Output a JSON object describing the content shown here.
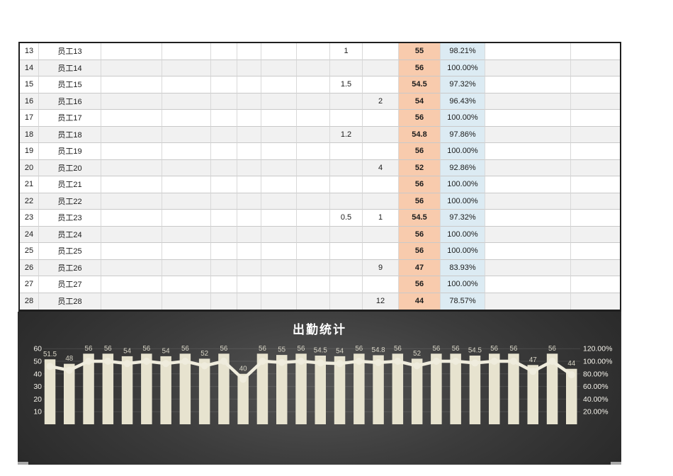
{
  "table": {
    "rows": [
      [
        "13",
        "员工13",
        "",
        "",
        "",
        "",
        "",
        "",
        "1",
        "",
        "55",
        "98.21%",
        "",
        ""
      ],
      [
        "14",
        "员工14",
        "",
        "",
        "",
        "",
        "",
        "",
        "",
        "",
        "56",
        "100.00%",
        "",
        ""
      ],
      [
        "15",
        "员工15",
        "",
        "",
        "",
        "",
        "",
        "",
        "1.5",
        "",
        "54.5",
        "97.32%",
        "",
        ""
      ],
      [
        "16",
        "员工16",
        "",
        "",
        "",
        "",
        "",
        "",
        "",
        "2",
        "54",
        "96.43%",
        "",
        ""
      ],
      [
        "17",
        "员工17",
        "",
        "",
        "",
        "",
        "",
        "",
        "",
        "",
        "56",
        "100.00%",
        "",
        ""
      ],
      [
        "18",
        "员工18",
        "",
        "",
        "",
        "",
        "",
        "",
        "1.2",
        "",
        "54.8",
        "97.86%",
        "",
        ""
      ],
      [
        "19",
        "员工19",
        "",
        "",
        "",
        "",
        "",
        "",
        "",
        "",
        "56",
        "100.00%",
        "",
        ""
      ],
      [
        "20",
        "员工20",
        "",
        "",
        "",
        "",
        "",
        "",
        "",
        "4",
        "52",
        "92.86%",
        "",
        ""
      ],
      [
        "21",
        "员工21",
        "",
        "",
        "",
        "",
        "",
        "",
        "",
        "",
        "56",
        "100.00%",
        "",
        ""
      ],
      [
        "22",
        "员工22",
        "",
        "",
        "",
        "",
        "",
        "",
        "",
        "",
        "56",
        "100.00%",
        "",
        ""
      ],
      [
        "23",
        "员工23",
        "",
        "",
        "",
        "",
        "",
        "",
        "0.5",
        "1",
        "54.5",
        "97.32%",
        "",
        ""
      ],
      [
        "24",
        "员工24",
        "",
        "",
        "",
        "",
        "",
        "",
        "",
        "",
        "56",
        "100.00%",
        "",
        ""
      ],
      [
        "25",
        "员工25",
        "",
        "",
        "",
        "",
        "",
        "",
        "",
        "",
        "56",
        "100.00%",
        "",
        ""
      ],
      [
        "26",
        "员工26",
        "",
        "",
        "",
        "",
        "",
        "",
        "",
        "9",
        "47",
        "83.93%",
        "",
        ""
      ],
      [
        "27",
        "员工27",
        "",
        "",
        "",
        "",
        "",
        "",
        "",
        "",
        "56",
        "100.00%",
        "",
        ""
      ],
      [
        "28",
        "员工28",
        "",
        "",
        "",
        "",
        "",
        "",
        "",
        "12",
        "44",
        "78.57%",
        "",
        ""
      ]
    ],
    "colors": {
      "total_column_bg": "#f8cbad",
      "rate_column_bg": "#dcebf3",
      "stripe": "#f1f1f1",
      "border": "#1f1f1f"
    }
  },
  "chart_data": {
    "type": "bar",
    "title": "出勤统计",
    "series": [
      {
        "name": "bars",
        "type": "bar",
        "values": [
          51.5,
          48,
          56,
          56,
          54,
          56,
          54,
          56,
          52,
          56,
          40,
          56,
          55,
          56,
          54.5,
          54,
          56,
          54.8,
          56,
          52,
          56,
          56,
          54.5,
          56,
          56,
          47,
          56,
          44
        ],
        "labels": [
          "51.5",
          "48",
          "56",
          "56",
          "54",
          "56",
          "54",
          "56",
          "52",
          "56",
          "40",
          "56",
          "55",
          "56",
          "54.5",
          "54",
          "56",
          "54.8",
          "56",
          "52",
          "56",
          "56",
          "54.5",
          "56",
          "56",
          "47",
          "56",
          "44"
        ]
      },
      {
        "name": "line",
        "type": "line",
        "axis": "right",
        "values": [
          91.96,
          85.71,
          100,
          100,
          96.43,
          100,
          96.43,
          100,
          92.86,
          100,
          71.43,
          100,
          98.21,
          100,
          97.32,
          96.43,
          100,
          97.86,
          100,
          92.86,
          100,
          100,
          97.32,
          100,
          100,
          83.93,
          100,
          78.57
        ]
      }
    ],
    "left_axis": {
      "ticks": [
        "60",
        "50",
        "40",
        "30",
        "20",
        "10"
      ],
      "min": 0,
      "max": 60
    },
    "right_axis": {
      "ticks": [
        "120.00%",
        "100.00%",
        "80.00%",
        "60.00%",
        "40.00%",
        "20.00%"
      ],
      "min": 0,
      "max": 120
    },
    "grid": "on",
    "legend": "none",
    "colors": {
      "bar": "#e7e3cf",
      "line": "#efecdd",
      "bar_label": "#d8d5c6",
      "axis_text": "#f6f4ec",
      "gridline": "rgba(255,255,255,0.10)",
      "title_text": "#ffffff",
      "bg_center": "#545454",
      "bg_mid": "#3c3c3c",
      "bg_edge": "#242424",
      "handle": "#a9a9a9"
    }
  }
}
